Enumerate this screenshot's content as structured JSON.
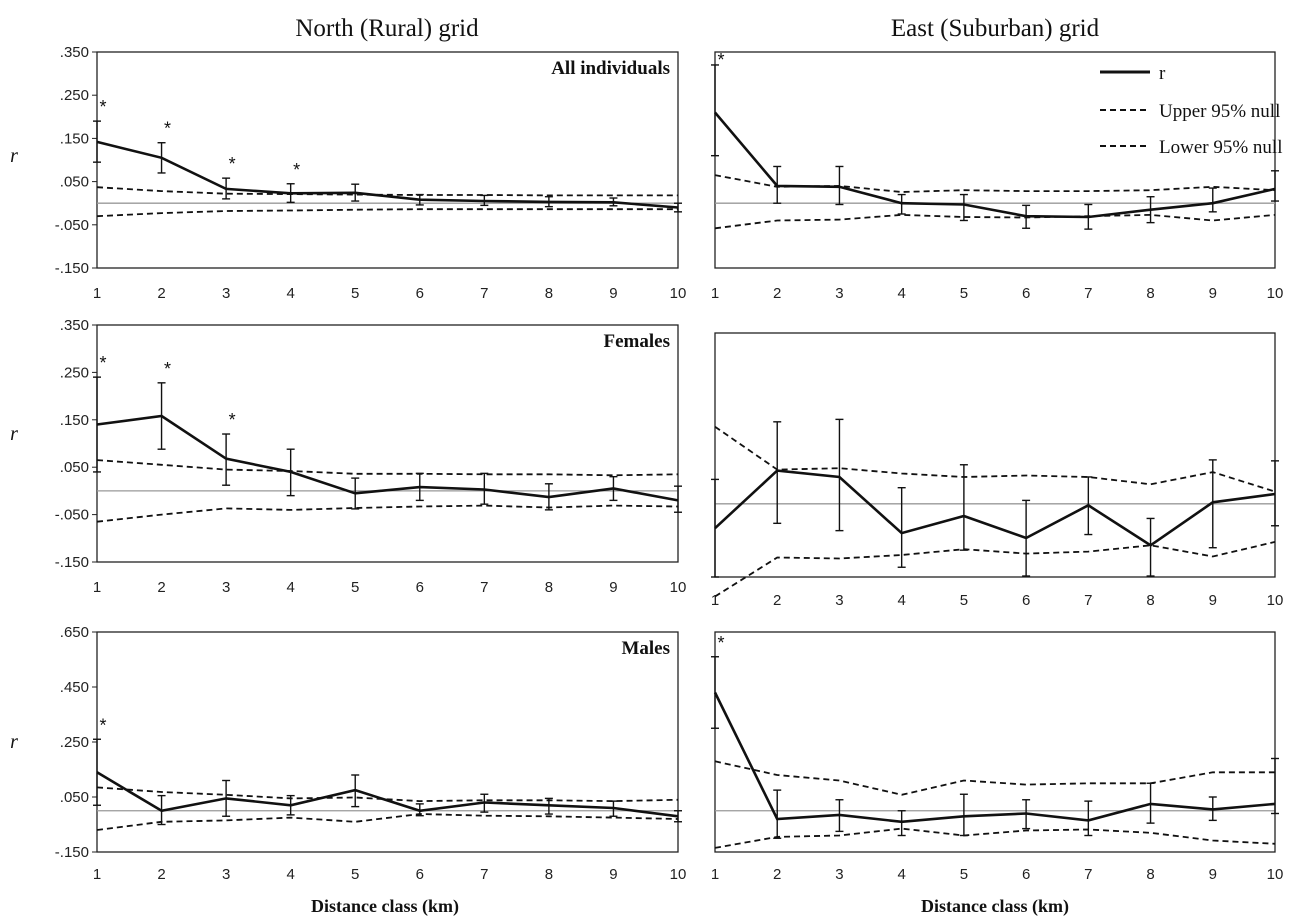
{
  "figure": {
    "column_titles": [
      "North (Rural) grid",
      "East (Suburban) grid"
    ],
    "y_axis_symbol": "r",
    "x_axis_label": "Distance class (km)",
    "legend": [
      "r",
      "Upper 95% null",
      "Lower 95% null"
    ]
  },
  "chart_data": [
    {
      "type": "line",
      "id": "north_all",
      "panel_label": "All individuals",
      "grid": "North (Rural) grid",
      "x": [
        1,
        2,
        3,
        4,
        5,
        6,
        7,
        8,
        9,
        10
      ],
      "ylim": [
        -0.15,
        0.35
      ],
      "yticks": [
        {
          "v": 0.35,
          "t": ".350"
        },
        {
          "v": 0.25,
          "t": ".250"
        },
        {
          "v": 0.15,
          "t": ".150"
        },
        {
          "v": 0.05,
          "t": ".050"
        },
        {
          "v": -0.05,
          "t": "-.050"
        },
        {
          "v": -0.15,
          "t": "-.150"
        }
      ],
      "series": [
        {
          "name": "r",
          "values": [
            0.142,
            0.105,
            0.033,
            0.023,
            0.024,
            0.008,
            0.005,
            0.003,
            0.002,
            -0.01
          ],
          "err_low": [
            0.095,
            0.07,
            0.01,
            0.002,
            0.005,
            -0.004,
            -0.005,
            -0.008,
            -0.006,
            -0.02
          ],
          "err_high": [
            0.19,
            0.14,
            0.058,
            0.045,
            0.044,
            0.02,
            0.018,
            0.015,
            0.012,
            0.0
          ]
        },
        {
          "name": "Upper 95% null",
          "values": [
            0.037,
            0.028,
            0.022,
            0.021,
            0.02,
            0.019,
            0.019,
            0.018,
            0.018,
            0.018
          ]
        },
        {
          "name": "Lower 95% null",
          "values": [
            -0.03,
            -0.023,
            -0.018,
            -0.017,
            -0.015,
            -0.014,
            -0.014,
            -0.014,
            -0.014,
            -0.014
          ]
        }
      ],
      "significant": [
        1,
        2,
        3,
        4
      ]
    },
    {
      "type": "line",
      "id": "east_all",
      "panel_label": "",
      "grid": "East (Suburban) grid",
      "x": [
        1,
        2,
        3,
        4,
        5,
        6,
        7,
        8,
        9,
        10
      ],
      "ylim": [
        -0.15,
        0.35
      ],
      "series": [
        {
          "name": "r",
          "values": [
            0.21,
            0.04,
            0.038,
            0.0,
            -0.003,
            -0.03,
            -0.032,
            -0.015,
            0.0,
            0.033
          ],
          "err_low": [
            0.11,
            0.0,
            -0.003,
            -0.025,
            -0.04,
            -0.058,
            -0.06,
            -0.045,
            -0.02,
            0.005
          ],
          "err_high": [
            0.32,
            0.085,
            0.085,
            0.02,
            0.02,
            -0.005,
            -0.003,
            0.015,
            0.035,
            0.075
          ]
        },
        {
          "name": "Upper 95% null",
          "values": [
            0.065,
            0.038,
            0.04,
            0.026,
            0.03,
            0.028,
            0.028,
            0.03,
            0.038,
            0.03
          ]
        },
        {
          "name": "Lower 95% null",
          "values": [
            -0.058,
            -0.04,
            -0.038,
            -0.027,
            -0.032,
            -0.033,
            -0.03,
            -0.027,
            -0.04,
            -0.027
          ]
        }
      ],
      "significant": [
        1
      ]
    },
    {
      "type": "line",
      "id": "north_f",
      "panel_label": "Females",
      "grid": "North (Rural) grid",
      "x": [
        1,
        2,
        3,
        4,
        5,
        6,
        7,
        8,
        9,
        10
      ],
      "ylim": [
        -0.15,
        0.35
      ],
      "yticks": [
        {
          "v": 0.35,
          "t": ".350"
        },
        {
          "v": 0.25,
          "t": ".250"
        },
        {
          "v": 0.15,
          "t": ".150"
        },
        {
          "v": 0.05,
          "t": ".050"
        },
        {
          "v": -0.05,
          "t": "-.050"
        },
        {
          "v": -0.15,
          "t": "-.150"
        }
      ],
      "series": [
        {
          "name": "r",
          "values": [
            0.14,
            0.158,
            0.068,
            0.04,
            -0.005,
            0.008,
            0.003,
            -0.013,
            0.005,
            -0.02
          ],
          "err_low": [
            0.04,
            0.088,
            0.012,
            -0.01,
            -0.038,
            -0.02,
            -0.028,
            -0.04,
            -0.02,
            -0.045
          ],
          "err_high": [
            0.24,
            0.228,
            0.12,
            0.088,
            0.027,
            0.037,
            0.037,
            0.015,
            0.03,
            0.01
          ]
        },
        {
          "name": "Upper 95% null",
          "values": [
            0.065,
            0.055,
            0.045,
            0.042,
            0.036,
            0.036,
            0.035,
            0.035,
            0.033,
            0.035
          ]
        },
        {
          "name": "Lower 95% null",
          "values": [
            -0.065,
            -0.05,
            -0.037,
            -0.04,
            -0.036,
            -0.033,
            -0.031,
            -0.035,
            -0.031,
            -0.033
          ]
        }
      ],
      "significant": [
        1,
        2,
        3
      ]
    },
    {
      "type": "line",
      "id": "east_f",
      "panel_label": "",
      "grid": "East (Suburban) grid",
      "x": [
        1,
        2,
        3,
        4,
        5,
        6,
        7,
        8,
        9,
        10
      ],
      "ylim": [
        -0.15,
        0.35
      ],
      "series": [
        {
          "name": "r",
          "values": [
            -0.05,
            0.068,
            0.055,
            -0.06,
            -0.025,
            -0.07,
            -0.003,
            -0.085,
            0.003,
            0.02
          ],
          "err_low": [
            -0.15,
            -0.04,
            -0.055,
            -0.13,
            -0.095,
            -0.148,
            -0.063,
            -0.148,
            -0.09,
            -0.045
          ],
          "err_high": [
            0.05,
            0.168,
            0.173,
            0.033,
            0.08,
            0.007,
            0.055,
            -0.03,
            0.09,
            0.088
          ]
        },
        {
          "name": "Upper 95% null",
          "values": [
            0.158,
            0.07,
            0.073,
            0.062,
            0.055,
            0.058,
            0.055,
            0.04,
            0.065,
            0.025
          ]
        },
        {
          "name": "Lower 95% null",
          "values": [
            -0.19,
            -0.11,
            -0.112,
            -0.105,
            -0.093,
            -0.102,
            -0.098,
            -0.085,
            -0.108,
            -0.078
          ]
        }
      ],
      "significant": []
    },
    {
      "type": "line",
      "id": "north_m",
      "panel_label": "Males",
      "grid": "North (Rural) grid",
      "x": [
        1,
        2,
        3,
        4,
        5,
        6,
        7,
        8,
        9,
        10
      ],
      "ylim": [
        -0.15,
        0.65
      ],
      "yticks": [
        {
          "v": 0.65,
          "t": ".650"
        },
        {
          "v": 0.45,
          "t": ".450"
        },
        {
          "v": 0.25,
          "t": ".250"
        },
        {
          "v": 0.05,
          "t": ".050"
        },
        {
          "v": -0.15,
          "t": "-.150"
        }
      ],
      "series": [
        {
          "name": "r",
          "values": [
            0.14,
            0.0,
            0.045,
            0.02,
            0.075,
            0.0,
            0.03,
            0.02,
            0.01,
            -0.02
          ],
          "err_low": [
            0.02,
            -0.05,
            -0.02,
            -0.015,
            0.015,
            -0.018,
            -0.005,
            -0.012,
            -0.02,
            -0.04
          ],
          "err_high": [
            0.26,
            0.055,
            0.11,
            0.055,
            0.13,
            0.025,
            0.06,
            0.045,
            0.035,
            0.0
          ]
        },
        {
          "name": "Upper 95% null",
          "values": [
            0.085,
            0.068,
            0.058,
            0.045,
            0.048,
            0.035,
            0.038,
            0.038,
            0.035,
            0.04
          ]
        },
        {
          "name": "Lower 95% null",
          "values": [
            -0.07,
            -0.04,
            -0.035,
            -0.025,
            -0.04,
            -0.012,
            -0.018,
            -0.02,
            -0.025,
            -0.03
          ]
        }
      ],
      "significant": [
        1
      ]
    },
    {
      "type": "line",
      "id": "east_m",
      "panel_label": "",
      "grid": "East (Suburban) grid",
      "x": [
        1,
        2,
        3,
        4,
        5,
        6,
        7,
        8,
        9,
        10
      ],
      "ylim": [
        -0.15,
        0.65
      ],
      "series": [
        {
          "name": "r",
          "values": [
            0.43,
            -0.03,
            -0.015,
            -0.04,
            -0.02,
            -0.01,
            -0.035,
            0.025,
            0.005,
            0.025
          ],
          "err_low": [
            0.3,
            -0.1,
            -0.075,
            -0.09,
            -0.09,
            -0.065,
            -0.09,
            -0.045,
            -0.035,
            -0.01
          ],
          "err_high": [
            0.56,
            0.075,
            0.04,
            0.0,
            0.06,
            0.04,
            0.035,
            0.1,
            0.05,
            0.19
          ]
        },
        {
          "name": "Upper 95% null",
          "values": [
            0.18,
            0.13,
            0.11,
            0.058,
            0.11,
            0.095,
            0.1,
            0.1,
            0.14,
            0.14
          ]
        },
        {
          "name": "Lower 95% null",
          "values": [
            -0.135,
            -0.095,
            -0.09,
            -0.065,
            -0.09,
            -0.072,
            -0.068,
            -0.08,
            -0.108,
            -0.12
          ]
        }
      ],
      "significant": [
        1
      ]
    }
  ]
}
